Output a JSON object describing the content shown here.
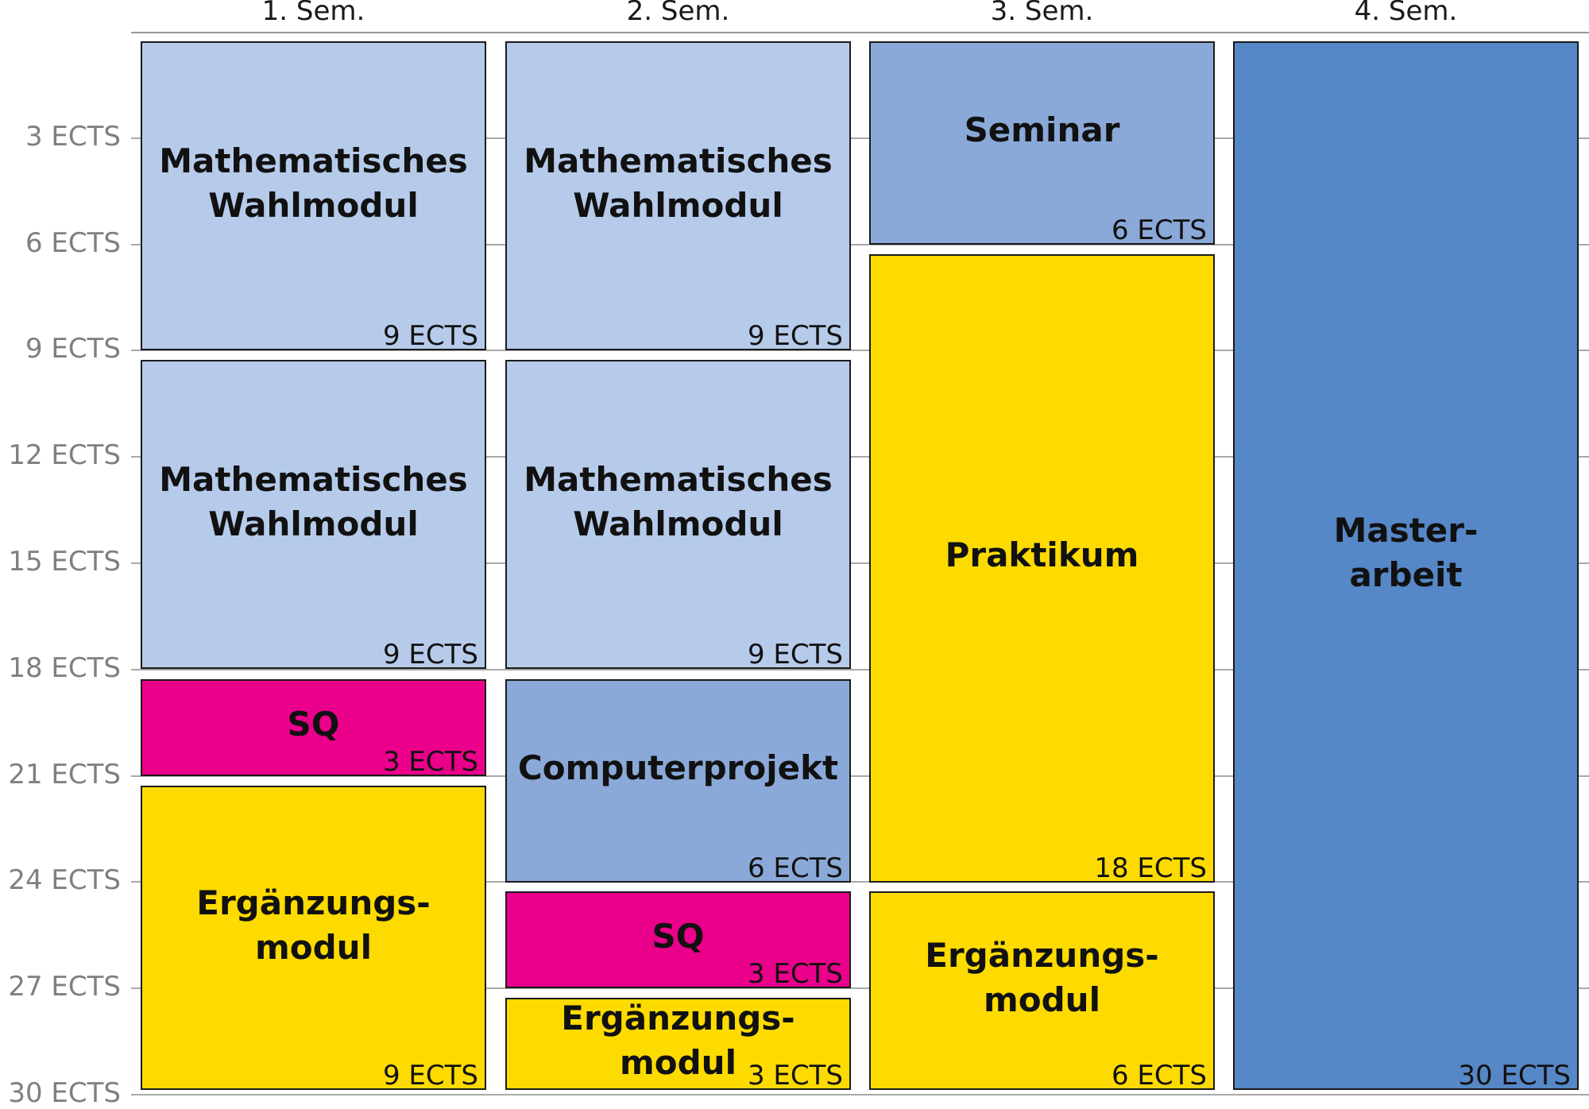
{
  "semesters": [
    "1. Sem.",
    "2. Sem.",
    "3. Sem.",
    "4. Sem."
  ],
  "ticks": [
    "3 ECTS",
    "6 ECTS",
    "9 ECTS",
    "12 ECTS",
    "15 ECTS",
    "18 ECTS",
    "21 ECTS",
    "24 ECTS",
    "27 ECTS",
    "30 ECTS"
  ],
  "colors": {
    "wahlmodul": "#b6cbea",
    "seminar_projekt": "#8aa9d8",
    "masterarbeit": "#5687c7",
    "sq": "#eb008b",
    "ergaenzung": "#fedb00"
  },
  "modules": [
    {
      "semester": 1,
      "start": 0,
      "ects": 9,
      "name": [
        "Mathematisches",
        "Wahlmodul"
      ],
      "ects_label": "9 ECTS",
      "color": "wahlmodul"
    },
    {
      "semester": 1,
      "start": 9,
      "ects": 9,
      "name": [
        "Mathematisches",
        "Wahlmodul"
      ],
      "ects_label": "9 ECTS",
      "color": "wahlmodul"
    },
    {
      "semester": 1,
      "start": 18,
      "ects": 3,
      "name": [
        "SQ"
      ],
      "ects_label": "3 ECTS",
      "color": "sq"
    },
    {
      "semester": 1,
      "start": 21,
      "ects": 9,
      "name": [
        "Ergänzungs-",
        "modul"
      ],
      "ects_label": "9 ECTS",
      "color": "ergaenzung"
    },
    {
      "semester": 2,
      "start": 0,
      "ects": 9,
      "name": [
        "Mathematisches",
        "Wahlmodul"
      ],
      "ects_label": "9 ECTS",
      "color": "wahlmodul"
    },
    {
      "semester": 2,
      "start": 9,
      "ects": 9,
      "name": [
        "Mathematisches",
        "Wahlmodul"
      ],
      "ects_label": "9 ECTS",
      "color": "wahlmodul"
    },
    {
      "semester": 2,
      "start": 18,
      "ects": 6,
      "name": [
        "Computerprojekt"
      ],
      "ects_label": "6 ECTS",
      "color": "seminar_projekt"
    },
    {
      "semester": 2,
      "start": 24,
      "ects": 3,
      "name": [
        "SQ"
      ],
      "ects_label": "3 ECTS",
      "color": "sq"
    },
    {
      "semester": 2,
      "start": 27,
      "ects": 3,
      "name": [
        "Ergänzungs-",
        "modul"
      ],
      "ects_label": "3 ECTS",
      "color": "ergaenzung"
    },
    {
      "semester": 3,
      "start": 0,
      "ects": 6,
      "name": [
        "Seminar"
      ],
      "ects_label": "6 ECTS",
      "color": "seminar_projekt"
    },
    {
      "semester": 3,
      "start": 6,
      "ects": 18,
      "name": [
        "Praktikum"
      ],
      "ects_label": "18 ECTS",
      "color": "ergaenzung"
    },
    {
      "semester": 3,
      "start": 24,
      "ects": 6,
      "name": [
        "Ergänzungs-",
        "modul"
      ],
      "ects_label": "6 ECTS",
      "color": "ergaenzung"
    },
    {
      "semester": 4,
      "start": 0,
      "ects": 30,
      "name": [
        "Master-",
        "arbeit"
      ],
      "ects_label": "30 ECTS",
      "color": "masterarbeit"
    }
  ]
}
